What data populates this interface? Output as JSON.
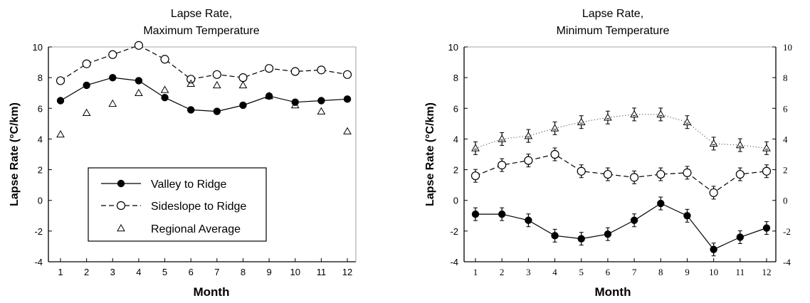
{
  "chart_data": [
    {
      "type": "line",
      "title": "Lapse Rate,",
      "subtitle": "Maximum Temperature",
      "xlabel": "Month",
      "ylabel": "Lapse Rate (°C/km)",
      "categories": [
        "1",
        "2",
        "3",
        "4",
        "5",
        "6",
        "7",
        "8",
        "9",
        "10",
        "11",
        "12"
      ],
      "ylim": [
        -4,
        10
      ],
      "yticks": [
        "10",
        "8",
        "6",
        "4",
        "2",
        "0",
        "-2",
        "-4"
      ],
      "legend": "lower-left",
      "series": [
        {
          "name": "Valley to Ridge",
          "style": "solid-filled-circle",
          "values": [
            6.5,
            7.5,
            8.0,
            7.8,
            6.7,
            5.9,
            5.8,
            6.2,
            6.8,
            6.4,
            6.5,
            6.6
          ]
        },
        {
          "name": "Sideslope to Ridge",
          "style": "dashed-open-circle",
          "values": [
            7.8,
            8.9,
            9.5,
            10.1,
            9.2,
            7.9,
            8.2,
            8.0,
            8.6,
            8.4,
            8.5,
            8.2
          ]
        },
        {
          "name": "Regional Average",
          "style": "triangle",
          "values": [
            4.3,
            5.7,
            6.3,
            7.0,
            7.2,
            7.6,
            7.5,
            7.5,
            6.8,
            6.2,
            5.8,
            4.5
          ]
        }
      ]
    },
    {
      "type": "line",
      "title": "Lapse Rate,",
      "subtitle": "Minimum Temperature",
      "xlabel": "Month",
      "ylabel": "Lapse Rate (°C/km)",
      "categories": [
        "1",
        "2",
        "3",
        "4",
        "5",
        "6",
        "7",
        "8",
        "9",
        "10",
        "11",
        "12"
      ],
      "ylim": [
        -4,
        10
      ],
      "yticks": [
        "10",
        "8",
        "6",
        "4",
        "2",
        "0",
        "-2",
        "-4"
      ],
      "series": [
        {
          "style": "solid-filled-circle",
          "values": [
            -0.9,
            -0.9,
            -1.3,
            -2.3,
            -2.5,
            -2.2,
            -1.3,
            -0.2,
            -1.0,
            -3.2,
            -2.4,
            -1.8
          ]
        },
        {
          "style": "dashed-open-circle",
          "values": [
            1.6,
            2.3,
            2.6,
            3.0,
            1.9,
            1.7,
            1.5,
            1.7,
            1.8,
            0.5,
            1.7,
            1.9
          ]
        },
        {
          "style": "dotted-triangle",
          "values": [
            3.4,
            4.0,
            4.2,
            4.7,
            5.1,
            5.4,
            5.6,
            5.6,
            5.1,
            3.7,
            3.6,
            3.4
          ]
        }
      ]
    }
  ]
}
